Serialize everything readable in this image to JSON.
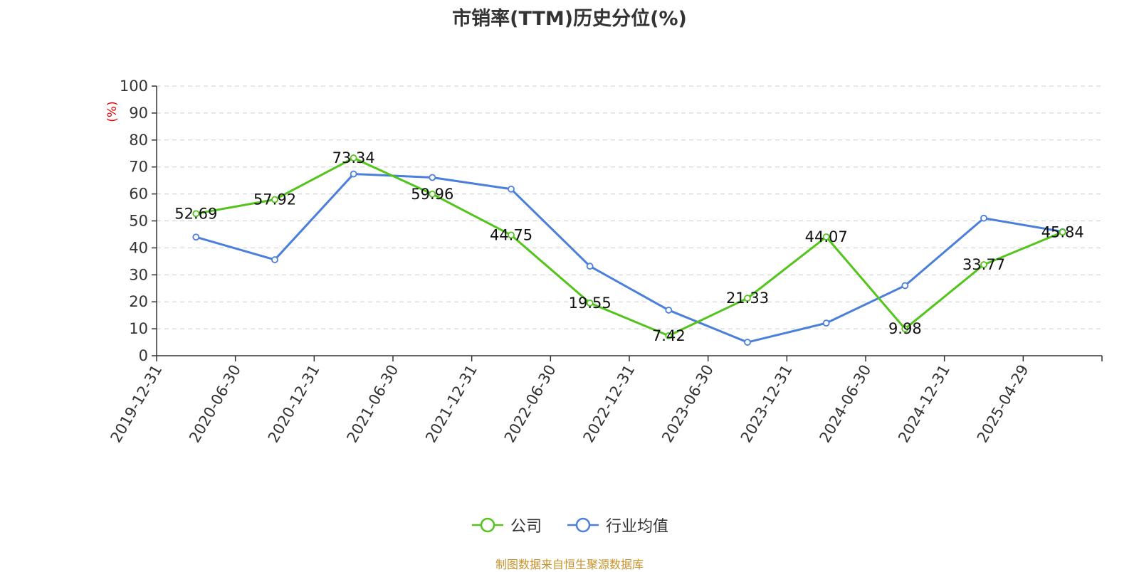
{
  "chart_data": {
    "type": "line",
    "title": "市销率(TTM)历史分位(%)",
    "ylabel": "(%)",
    "ylim": [
      0,
      100
    ],
    "yticks": [
      0,
      10,
      20,
      30,
      40,
      50,
      60,
      70,
      80,
      90,
      100
    ],
    "categories": [
      "2019-12-31",
      "2020-06-30",
      "2020-12-31",
      "2021-06-30",
      "2021-12-31",
      "2022-06-30",
      "2022-12-31",
      "2023-06-30",
      "2023-12-31",
      "2024-06-30",
      "2024-12-31",
      "2025-04-29"
    ],
    "grid": true,
    "legend_position": "bottom",
    "series": [
      {
        "name": "公司",
        "color": "#52c41a",
        "values": [
          52.69,
          57.92,
          73.34,
          59.96,
          44.75,
          19.55,
          7.42,
          21.33,
          44.07,
          9.98,
          33.77,
          45.84
        ],
        "labels": [
          "52.69",
          "57.92",
          "73.34",
          "59.96",
          "44.75",
          "19.55",
          "7.42",
          "21.33",
          "44.07",
          "9.98",
          "33.77",
          "45.84"
        ]
      },
      {
        "name": "行业均值",
        "color": "#4a7fdb",
        "values": [
          44.0,
          35.6,
          67.4,
          66.1,
          61.8,
          33.2,
          16.9,
          5.0,
          12.1,
          26.0,
          51.0,
          46.0
        ]
      }
    ],
    "source": "制图数据来自恒生聚源数据库"
  }
}
